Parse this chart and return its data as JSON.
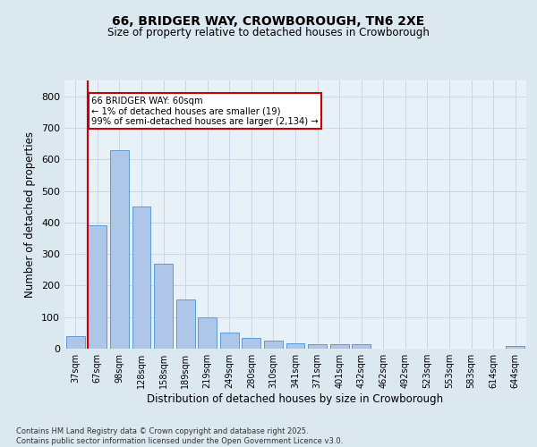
{
  "title_line1": "66, BRIDGER WAY, CROWBOROUGH, TN6 2XE",
  "title_line2": "Size of property relative to detached houses in Crowborough",
  "xlabel": "Distribution of detached houses by size in Crowborough",
  "ylabel": "Number of detached properties",
  "categories": [
    "37sqm",
    "67sqm",
    "98sqm",
    "128sqm",
    "158sqm",
    "189sqm",
    "219sqm",
    "249sqm",
    "280sqm",
    "310sqm",
    "341sqm",
    "371sqm",
    "401sqm",
    "432sqm",
    "462sqm",
    "492sqm",
    "523sqm",
    "553sqm",
    "583sqm",
    "614sqm",
    "644sqm"
  ],
  "values": [
    40,
    390,
    630,
    450,
    270,
    155,
    100,
    50,
    35,
    25,
    18,
    15,
    15,
    14,
    0,
    0,
    0,
    0,
    0,
    0,
    8
  ],
  "bar_color": "#aec6e8",
  "bar_edge_color": "#5b9bd5",
  "marker_color": "#cc0000",
  "annotation_text": "66 BRIDGER WAY: 60sqm\n← 1% of detached houses are smaller (19)\n99% of semi-detached houses are larger (2,134) →",
  "annotation_box_color": "#ffffff",
  "annotation_box_edge": "#cc0000",
  "ylim": [
    0,
    850
  ],
  "yticks": [
    0,
    100,
    200,
    300,
    400,
    500,
    600,
    700,
    800
  ],
  "grid_color": "#c8d8e8",
  "background_color": "#dce8f0",
  "plot_bg_color": "#e8f0f8",
  "footnote": "Contains HM Land Registry data © Crown copyright and database right 2025.\nContains public sector information licensed under the Open Government Licence v3.0."
}
